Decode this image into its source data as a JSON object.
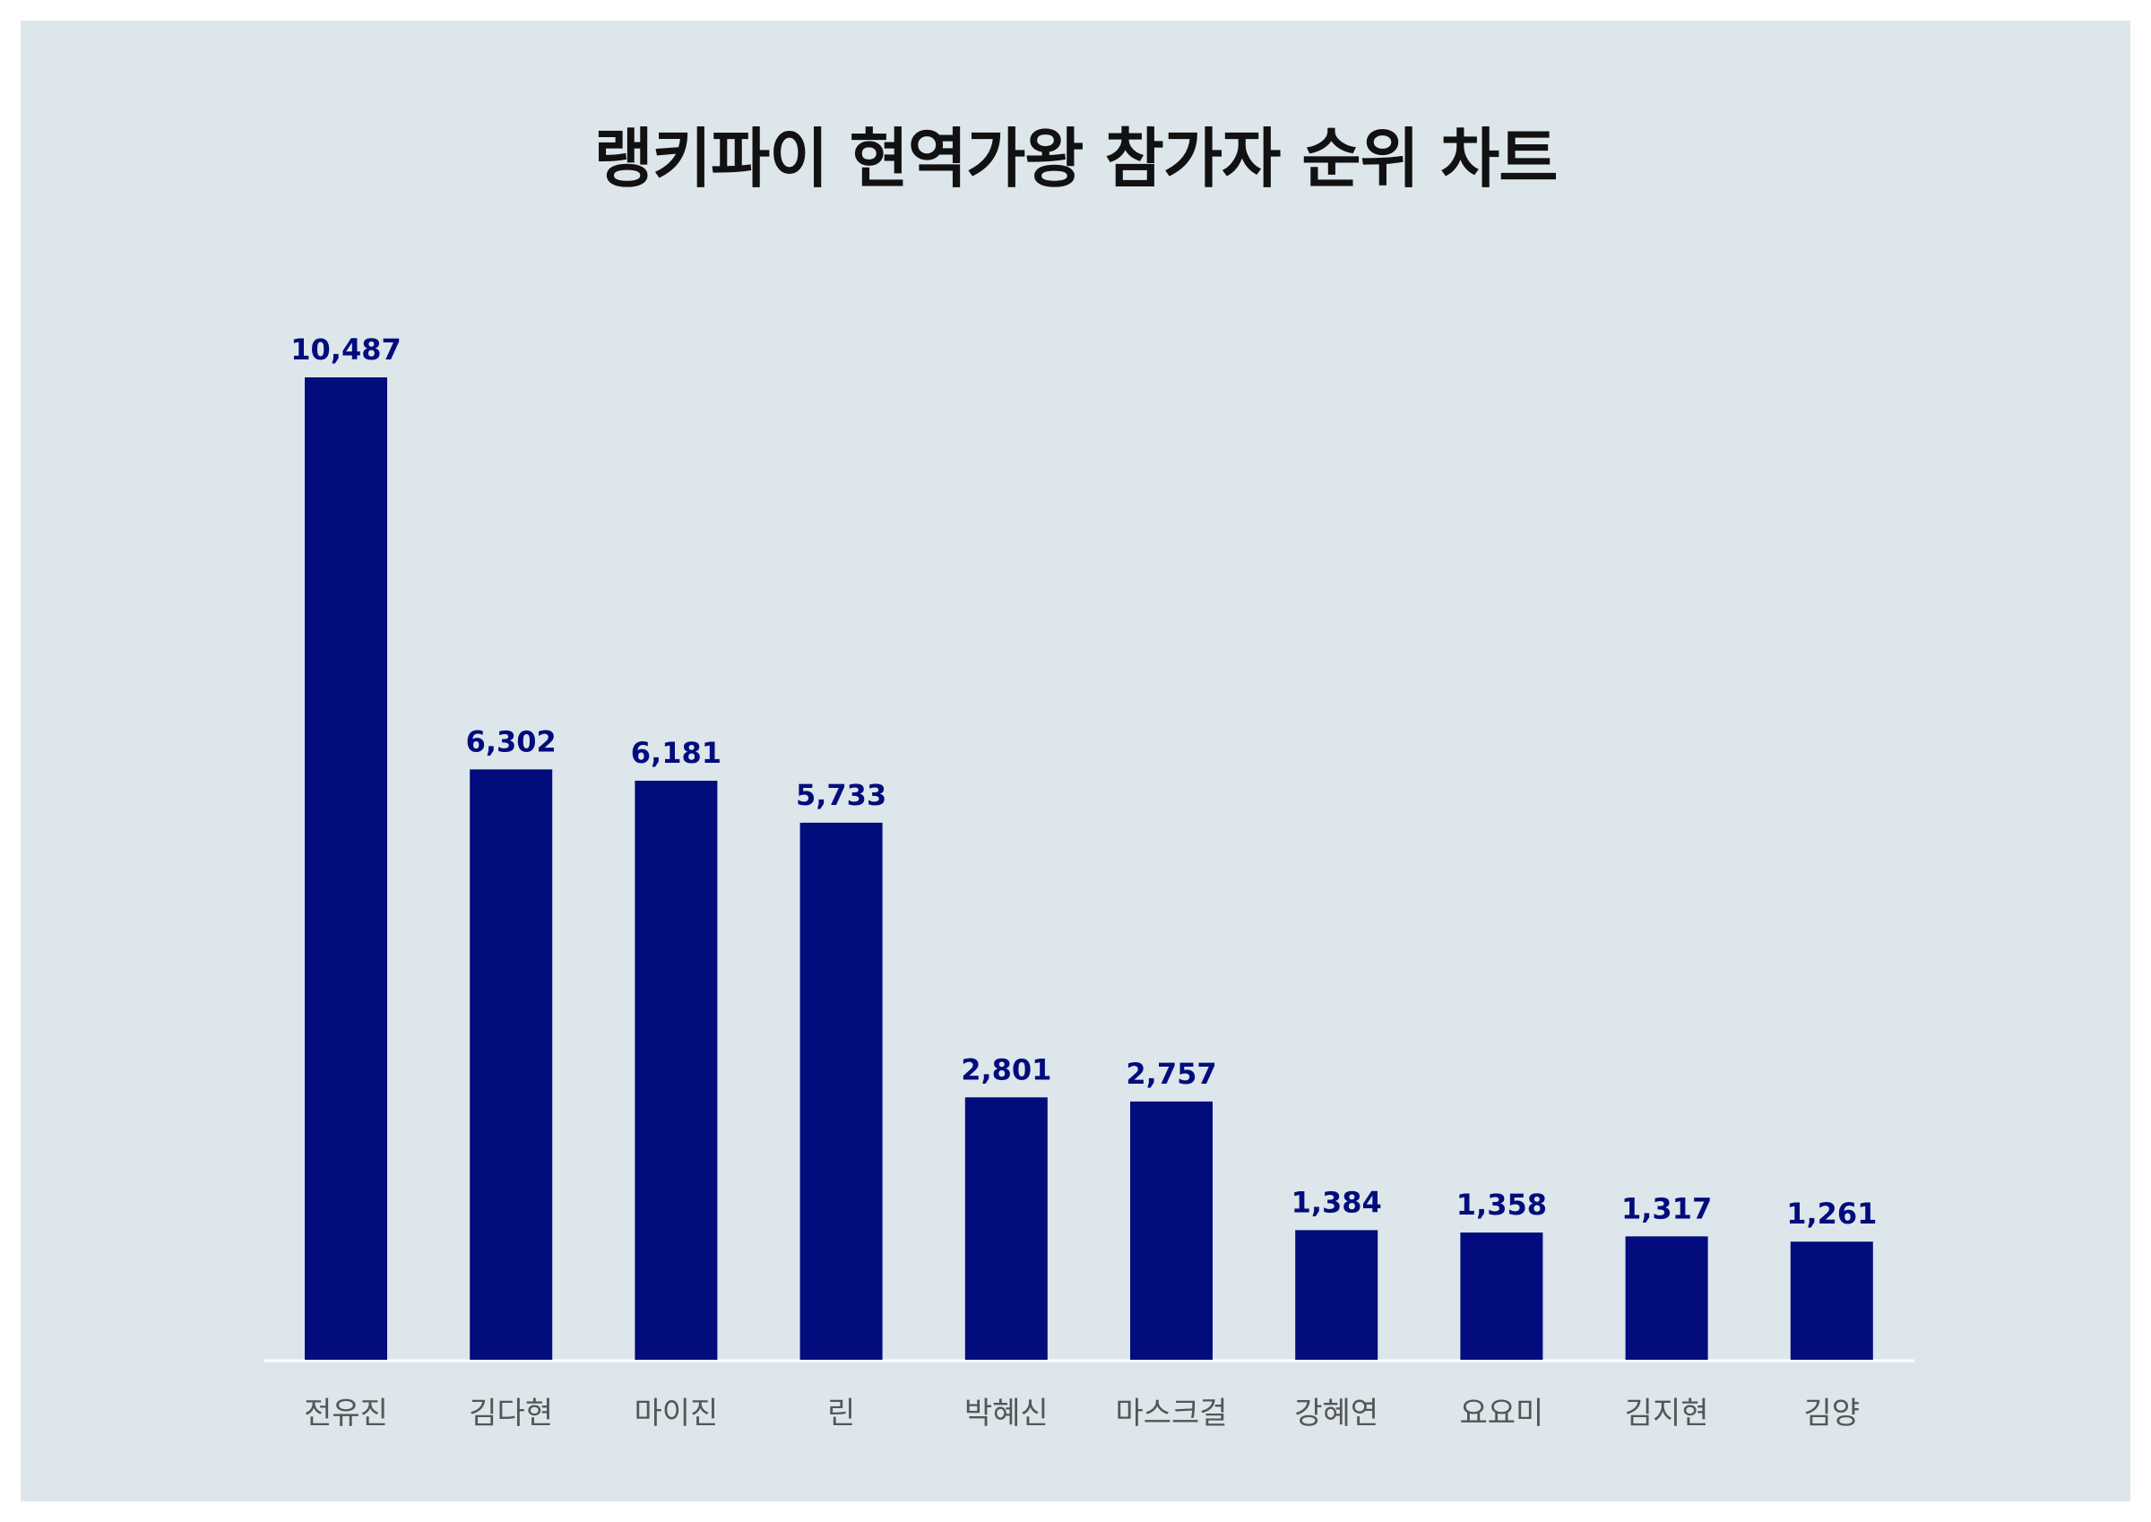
{
  "chart_data": {
    "type": "bar",
    "title": "랭키파이 현역가왕 참가자 순위 차트",
    "categories": [
      "전유진",
      "김다현",
      "마이진",
      "린",
      "박혜신",
      "마스크걸",
      "강혜연",
      "요요미",
      "김지현",
      "김양"
    ],
    "values": [
      10487,
      6302,
      6181,
      5733,
      2801,
      2757,
      1384,
      1358,
      1317,
      1261
    ],
    "value_labels": [
      "10,487",
      "6,302",
      "6,181",
      "5,733",
      "2,801",
      "2,757",
      "1,384",
      "1,358",
      "1,317",
      "1,261"
    ],
    "xlabel": "",
    "ylabel": "",
    "ylim": [
      0,
      10487
    ],
    "grid": false,
    "legend": "none",
    "colors": {
      "bar": "#020c7c",
      "value_label": "#020c7c",
      "category_label": "#555555",
      "axis_line": "#ffffff",
      "background": "#dce6eb",
      "title": "#111111"
    }
  }
}
